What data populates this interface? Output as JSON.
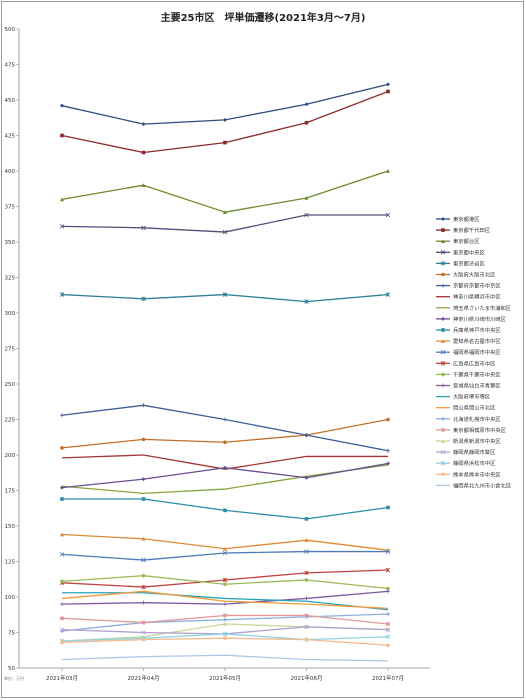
{
  "chart_data": {
    "type": "line",
    "title": "主要25市区　坪単価遷移(2021年3月～7月)",
    "categories": [
      "2021年03月",
      "2021年04月",
      "2021年05月",
      "2021年06月",
      "2021年07月"
    ],
    "ylim": [
      50,
      500
    ],
    "yticks": [
      50,
      75,
      100,
      125,
      150,
      175,
      200,
      225,
      250,
      275,
      300,
      325,
      350,
      375,
      400,
      425,
      450,
      475,
      500
    ],
    "grid": false,
    "legend_position": "right",
    "note": "単位：万円",
    "series": [
      {
        "name": "東京都港区",
        "color": "#2e4e7e",
        "marker": "diamond",
        "values": [
          446,
          433,
          436,
          447,
          461
        ]
      },
      {
        "name": "東京都千代田区",
        "color": "#8b2c2a",
        "marker": "square",
        "values": [
          425,
          413,
          420,
          434,
          456
        ]
      },
      {
        "name": "東京都台区",
        "color": "#6e8a2e",
        "marker": "triangle",
        "values": [
          380,
          390,
          371,
          381,
          400
        ]
      },
      {
        "name": "東京都中央区",
        "color": "#5a4a7a",
        "marker": "x",
        "values": [
          361,
          360,
          357,
          369,
          369
        ]
      },
      {
        "name": "東京都渋谷区",
        "color": "#2f7f96",
        "marker": "star",
        "values": [
          313,
          310,
          313,
          308,
          313
        ]
      },
      {
        "name": "大阪府大阪市北区",
        "color": "#c0702a",
        "marker": "circle",
        "values": [
          205,
          211,
          209,
          214,
          225
        ]
      },
      {
        "name": "京都府京都市中京区",
        "color": "#3b5e9a",
        "marker": "plus",
        "values": [
          228,
          235,
          225,
          214,
          203
        ]
      },
      {
        "name": "神奈川県横浜市中区",
        "color": "#a23633",
        "marker": "line",
        "values": [
          198,
          200,
          190,
          199,
          199
        ]
      },
      {
        "name": "埼玉県さいたま市浦和区",
        "color": "#86a83a",
        "marker": "line",
        "values": [
          178,
          173,
          176,
          185,
          193
        ]
      },
      {
        "name": "神奈川県川崎市川崎区",
        "color": "#6a4e8f",
        "marker": "diamond",
        "values": [
          177,
          183,
          191,
          184,
          194
        ]
      },
      {
        "name": "兵庫県神戸市中央区",
        "color": "#2b8ea8",
        "marker": "square",
        "values": [
          169,
          169,
          161,
          155,
          163
        ]
      },
      {
        "name": "愛知県名古屋市中区",
        "color": "#e08a36",
        "marker": "triangle",
        "values": [
          144,
          141,
          134,
          140,
          133
        ]
      },
      {
        "name": "福岡県福岡市中央区",
        "color": "#4e7ab8",
        "marker": "x",
        "values": [
          130,
          126,
          131,
          132,
          132
        ]
      },
      {
        "name": "広島県広島市中区",
        "color": "#c0453f",
        "marker": "star",
        "values": [
          110,
          107,
          112,
          117,
          119
        ]
      },
      {
        "name": "千葉県千葉市中央区",
        "color": "#9bba59",
        "marker": "circle",
        "values": [
          111,
          115,
          109,
          112,
          106
        ]
      },
      {
        "name": "宮城県仙台市青葉区",
        "color": "#7a5c9e",
        "marker": "plus",
        "values": [
          95,
          96,
          95,
          99,
          104
        ]
      },
      {
        "name": "大阪府堺市堺区",
        "color": "#2aa3b8",
        "marker": "line",
        "values": [
          103,
          103,
          99,
          97,
          91
        ]
      },
      {
        "name": "岡山県岡山市北区",
        "color": "#f09a3c",
        "marker": "line",
        "values": [
          99,
          104,
          97,
          95,
          92
        ]
      },
      {
        "name": "北海道札幌市中央区",
        "color": "#8ab0e0",
        "marker": "diamond",
        "values": [
          76,
          82,
          84,
          86,
          88
        ]
      },
      {
        "name": "東京都相模原市中央区",
        "color": "#e09a9a",
        "marker": "square",
        "values": [
          85,
          82,
          87,
          87,
          81
        ]
      },
      {
        "name": "新潟県新潟市中央区",
        "color": "#c6d89a",
        "marker": "triangle",
        "values": [
          69,
          72,
          81,
          79,
          77
        ]
      },
      {
        "name": "静岡県静岡市葵区",
        "color": "#b3a2cf",
        "marker": "x",
        "values": [
          77,
          75,
          74,
          79,
          77
        ]
      },
      {
        "name": "静岡県浜松市中区",
        "color": "#8fd2e0",
        "marker": "star",
        "values": [
          69,
          71,
          74,
          70,
          72
        ]
      },
      {
        "name": "熊本県熊本市中央区",
        "color": "#f7b98e",
        "marker": "circle",
        "values": [
          68,
          70,
          71,
          70,
          66
        ]
      },
      {
        "name": "福岡県北九州市小倉北区",
        "color": "#aec5ea",
        "marker": "line",
        "values": [
          56,
          58,
          59,
          56,
          55
        ]
      }
    ]
  }
}
